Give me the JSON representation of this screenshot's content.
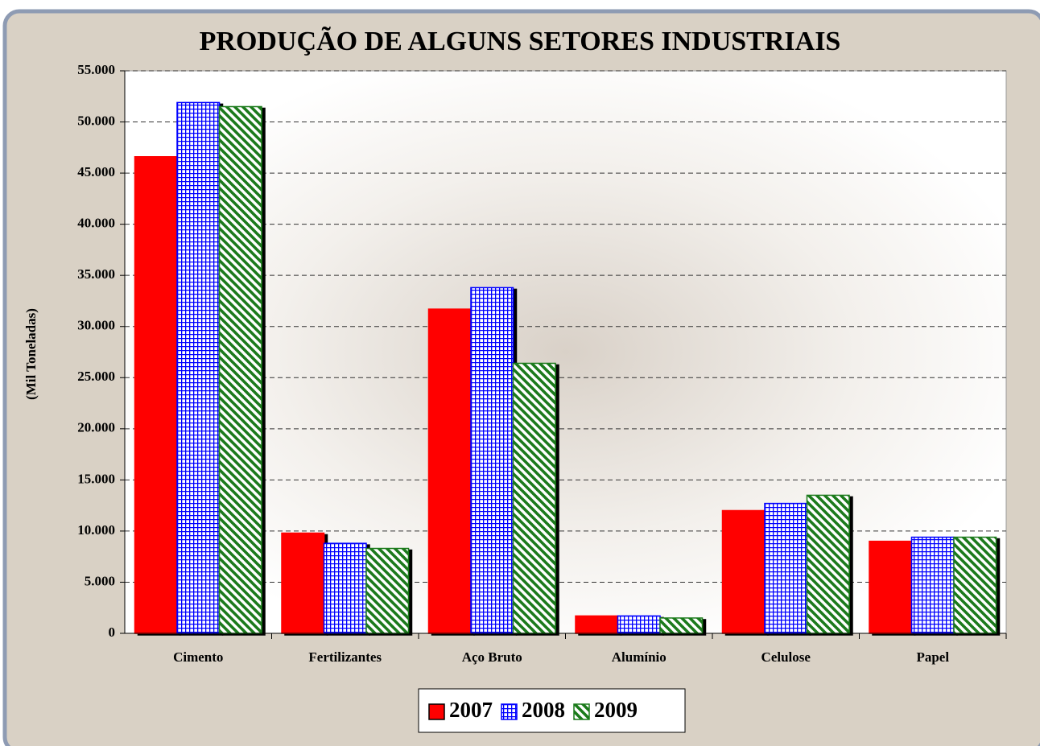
{
  "chart_data": {
    "type": "bar",
    "title": "PRODUÇÃO DE ALGUNS SETORES INDUSTRIAIS",
    "y_axis_label": "(Mil Toneladas)",
    "categories": [
      "Cimento",
      "Fertilizantes",
      "Aço Bruto",
      "Alumínio",
      "Celulose",
      "Papel"
    ],
    "series": [
      {
        "name": "2007",
        "color": "#ff0000",
        "pattern": "solid",
        "values": [
          46600,
          9800,
          31700,
          1700,
          12000,
          9000
        ]
      },
      {
        "name": "2008",
        "color": "#0000ff",
        "pattern": "grid",
        "values": [
          51900,
          8800,
          33800,
          1700,
          12700,
          9400
        ]
      },
      {
        "name": "2009",
        "color": "#1a7a1a",
        "pattern": "diagonal",
        "values": [
          51500,
          8300,
          26400,
          1500,
          13500,
          9400
        ]
      }
    ],
    "ylim": [
      0,
      55000
    ],
    "yticks": [
      0,
      {
        "value": 5000,
        "label": "5.000"
      },
      {
        "value": 10000,
        "label": "10.000"
      },
      {
        "value": 15000,
        "label": "15.000"
      },
      {
        "value": 20000,
        "label": "20.000"
      },
      {
        "value": 25000,
        "label": "25.000"
      },
      {
        "value": 30000,
        "label": "30.000"
      },
      {
        "value": 35000,
        "label": "35.000"
      },
      {
        "value": 40000,
        "label": "40.000"
      },
      {
        "value": 45000,
        "label": "45.000"
      },
      {
        "value": 50000,
        "label": "50.000"
      },
      {
        "value": 55000,
        "label": "55.000"
      }
    ],
    "grid": true,
    "legend": "bottom"
  }
}
